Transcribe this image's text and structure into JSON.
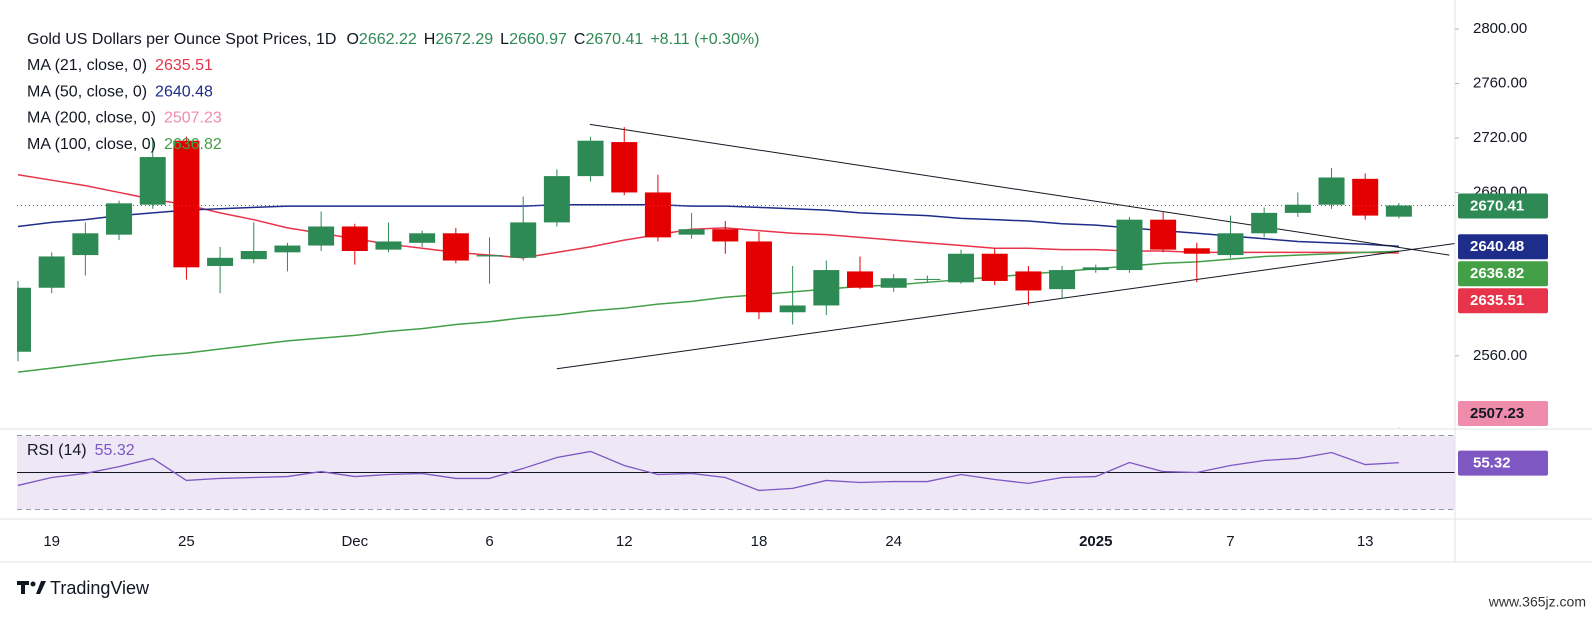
{
  "chart_data": {
    "type": "candlestick",
    "title": "Gold US Dollars per Ounce Spot Prices, 1D",
    "ohlc_prefixes": [
      "O",
      "H",
      "L",
      "C"
    ],
    "change": "+8.11 (+0.30%)",
    "categories": [
      null,
      "19",
      null,
      null,
      null,
      "25",
      null,
      null,
      null,
      null,
      "Dec",
      null,
      null,
      null,
      "6",
      null,
      null,
      null,
      "12",
      null,
      null,
      null,
      "18",
      null,
      null,
      null,
      "24",
      null,
      null,
      null,
      null,
      null,
      "2025",
      null,
      null,
      null,
      "7",
      null,
      null,
      null,
      "13",
      null
    ],
    "open": [
      2563,
      2610,
      2634,
      2649,
      2671,
      2718,
      2626,
      2631,
      2636,
      2641,
      2655,
      2638,
      2643,
      2650,
      2633,
      2632,
      2658,
      2692,
      2717,
      2680,
      2649,
      2653,
      2644,
      2592,
      2597,
      2622,
      2610,
      2616,
      2614,
      2635,
      2622,
      2609,
      2623,
      2623,
      2660,
      2639,
      2634,
      2650,
      2665,
      2671,
      2690,
      2662.22
    ],
    "high": [
      2615,
      2636,
      2658,
      2674,
      2720,
      2721,
      2640,
      2658,
      2643,
      2666,
      2657,
      2658,
      2652,
      2654,
      2647,
      2677,
      2697,
      2721,
      2728,
      2693,
      2665,
      2659,
      2651,
      2626,
      2630,
      2633,
      2620,
      2619,
      2638,
      2639,
      2626,
      2626,
      2627,
      2662,
      2666,
      2643,
      2663,
      2669,
      2680,
      2698,
      2694,
      2672.29
    ],
    "low": [
      2556,
      2606,
      2619,
      2645,
      2668,
      2616,
      2606,
      2628,
      2622,
      2637,
      2627,
      2636,
      2640,
      2628,
      2613,
      2630,
      2655,
      2688,
      2678,
      2644,
      2646,
      2635,
      2587,
      2583,
      2590,
      2609,
      2607,
      2614,
      2613,
      2612,
      2597,
      2602,
      2621,
      2621,
      2636,
      2614,
      2632,
      2647,
      2662,
      2668,
      2660,
      2660.97
    ],
    "close": [
      2610,
      2633,
      2650,
      2672,
      2706,
      2625,
      2632,
      2637,
      2641,
      2655,
      2637,
      2644,
      2650,
      2630,
      2634,
      2658,
      2692,
      2718,
      2680,
      2647,
      2653,
      2644,
      2592,
      2597,
      2623,
      2610,
      2617,
      2616.5,
      2635,
      2615,
      2608,
      2623,
      2625,
      2660,
      2638,
      2635,
      2650,
      2665,
      2671,
      2691,
      2663,
      2670.41
    ],
    "up_color": "#2e8a55",
    "down_color": "#e40000",
    "ylim": [
      2507,
      2814
    ],
    "yticks": [
      {
        "value": 2560,
        "label": "2560.00"
      },
      {
        "value": 2680,
        "label": "2680.00"
      },
      {
        "value": 2720,
        "label": "2720.00"
      },
      {
        "value": 2760,
        "label": "2760.00"
      },
      {
        "value": 2800,
        "label": "2800.00"
      }
    ],
    "last_price_line": true,
    "moving_averages": [
      {
        "name": "MA (21, close, 0)",
        "color": "#e8344a",
        "tag_text": "#ffffff",
        "values": [
          2693,
          2689,
          2685,
          2680,
          2675,
          2671,
          2665,
          2660,
          2654,
          2650,
          2646,
          2642,
          2639,
          2636,
          2634,
          2632,
          2636,
          2640,
          2645,
          2649,
          2653,
          2654,
          2652,
          2650,
          2649,
          2647,
          2645,
          2643,
          2641,
          2639,
          2639,
          2638,
          2638,
          2637,
          2637,
          2636,
          2636,
          2636,
          2636,
          2636,
          2636,
          2635.51
        ]
      },
      {
        "name": "MA (50, close, 0)",
        "color": "#1f2d8a",
        "tag_text": "#ffffff",
        "values": [
          2655,
          2658,
          2660,
          2663,
          2665,
          2667,
          2668,
          2669,
          2670,
          2670,
          2670,
          2670,
          2670,
          2670,
          2670,
          2670,
          2671,
          2671,
          2671,
          2671,
          2670,
          2670,
          2669,
          2668,
          2667,
          2665,
          2664,
          2663,
          2661,
          2660,
          2659,
          2657,
          2656,
          2654,
          2652,
          2650,
          2648,
          2646,
          2644,
          2643,
          2642,
          2640.48
        ]
      },
      {
        "name": "MA (200, close, 0)",
        "color": "#f08cab",
        "tag_text": "#131722",
        "values": [
          null,
          null,
          null,
          null,
          null,
          null,
          null,
          null,
          null,
          null,
          null,
          null,
          null,
          null,
          null,
          null,
          null,
          null,
          null,
          null,
          null,
          null,
          null,
          null,
          null,
          null,
          null,
          null,
          null,
          null,
          null,
          null,
          null,
          null,
          null,
          null,
          null,
          null,
          null,
          null,
          null,
          2507.23
        ]
      },
      {
        "name": "MA (100, close, 0)",
        "color": "#43a047",
        "tag_text": "#ffffff",
        "values": [
          2548,
          2551,
          2554,
          2557,
          2560,
          2562,
          2565,
          2568,
          2571,
          2573,
          2575,
          2578,
          2580,
          2583,
          2585,
          2588,
          2590,
          2593,
          2595,
          2598,
          2600,
          2603,
          2605,
          2607,
          2609,
          2611,
          2612,
          2614,
          2616,
          2618,
          2620,
          2622,
          2624,
          2626,
          2628,
          2629,
          2631,
          2633,
          2634,
          2635,
          2636,
          2636.82
        ]
      }
    ],
    "trendlines": [
      {
        "from": [
          16.98,
          2730
        ],
        "to": [
          42.5,
          2634
        ],
        "color": "#131722"
      },
      {
        "from": [
          16,
          2550.5
        ],
        "to": [
          42.8,
          2643
        ],
        "color": "#131722"
      }
    ],
    "rsi": {
      "name": "RSI (14)",
      "color": "#7e57c2",
      "fill": "#ede7f6",
      "ylim": [
        27,
        73
      ],
      "levels": [
        70,
        50,
        30
      ],
      "values": [
        43.0,
        47.3,
        49.5,
        53.2,
        57.6,
        45.7,
        46.8,
        47.3,
        47.8,
        50.5,
        47.8,
        48.9,
        49.5,
        46.8,
        46.8,
        52.2,
        58.1,
        61.4,
        53.8,
        48.9,
        49.5,
        47.3,
        40.3,
        41.4,
        45.7,
        44.6,
        45.1,
        45.1,
        48.9,
        46.2,
        44.1,
        47.3,
        47.8,
        55.4,
        50.5,
        50.0,
        53.8,
        56.5,
        57.6,
        60.8,
        54.3,
        55.32
      ]
    }
  },
  "footer": {
    "brand": "TradingView",
    "watermark": "www.365jz.com"
  }
}
